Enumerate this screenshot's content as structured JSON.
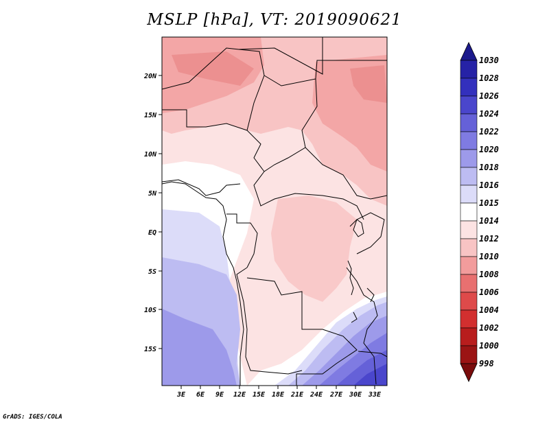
{
  "title": "MSLP [hPa], VT: 2019090621",
  "footer": "GrADS: IGES/COLA",
  "latitude_labels": [
    "20N",
    "15N",
    "10N",
    "5N",
    "EQ",
    "5S",
    "10S",
    "15S"
  ],
  "longitude_labels": [
    "3E",
    "6E",
    "9E",
    "12E",
    "15E",
    "18E",
    "21E",
    "24E",
    "27E",
    "30E",
    "33E"
  ],
  "colorbar": {
    "levels": [
      "1030",
      "1028",
      "1026",
      "1024",
      "1022",
      "1020",
      "1018",
      "1016",
      "1015",
      "1014",
      "1012",
      "1010",
      "1008",
      "1006",
      "1004",
      "1002",
      "1000",
      "998"
    ],
    "colors": [
      "#1c1a8c",
      "#2622a6",
      "#3330bd",
      "#4a46cc",
      "#6561d8",
      "#7f7be2",
      "#9d9aea",
      "#bdbcf2",
      "#dcdcf9",
      "#ffffff",
      "#fce3e3",
      "#f8c4c4",
      "#f29c9c",
      "#e87070",
      "#de4a4a",
      "#d22f2f",
      "#b81d1d",
      "#9b1414",
      "#7a0c0c"
    ]
  },
  "field_colors": {
    "higher_pressure": "#9d9aea",
    "lowest_pressure": "#e88888",
    "near_neutral": "#ffffff",
    "border": "#000000"
  }
}
